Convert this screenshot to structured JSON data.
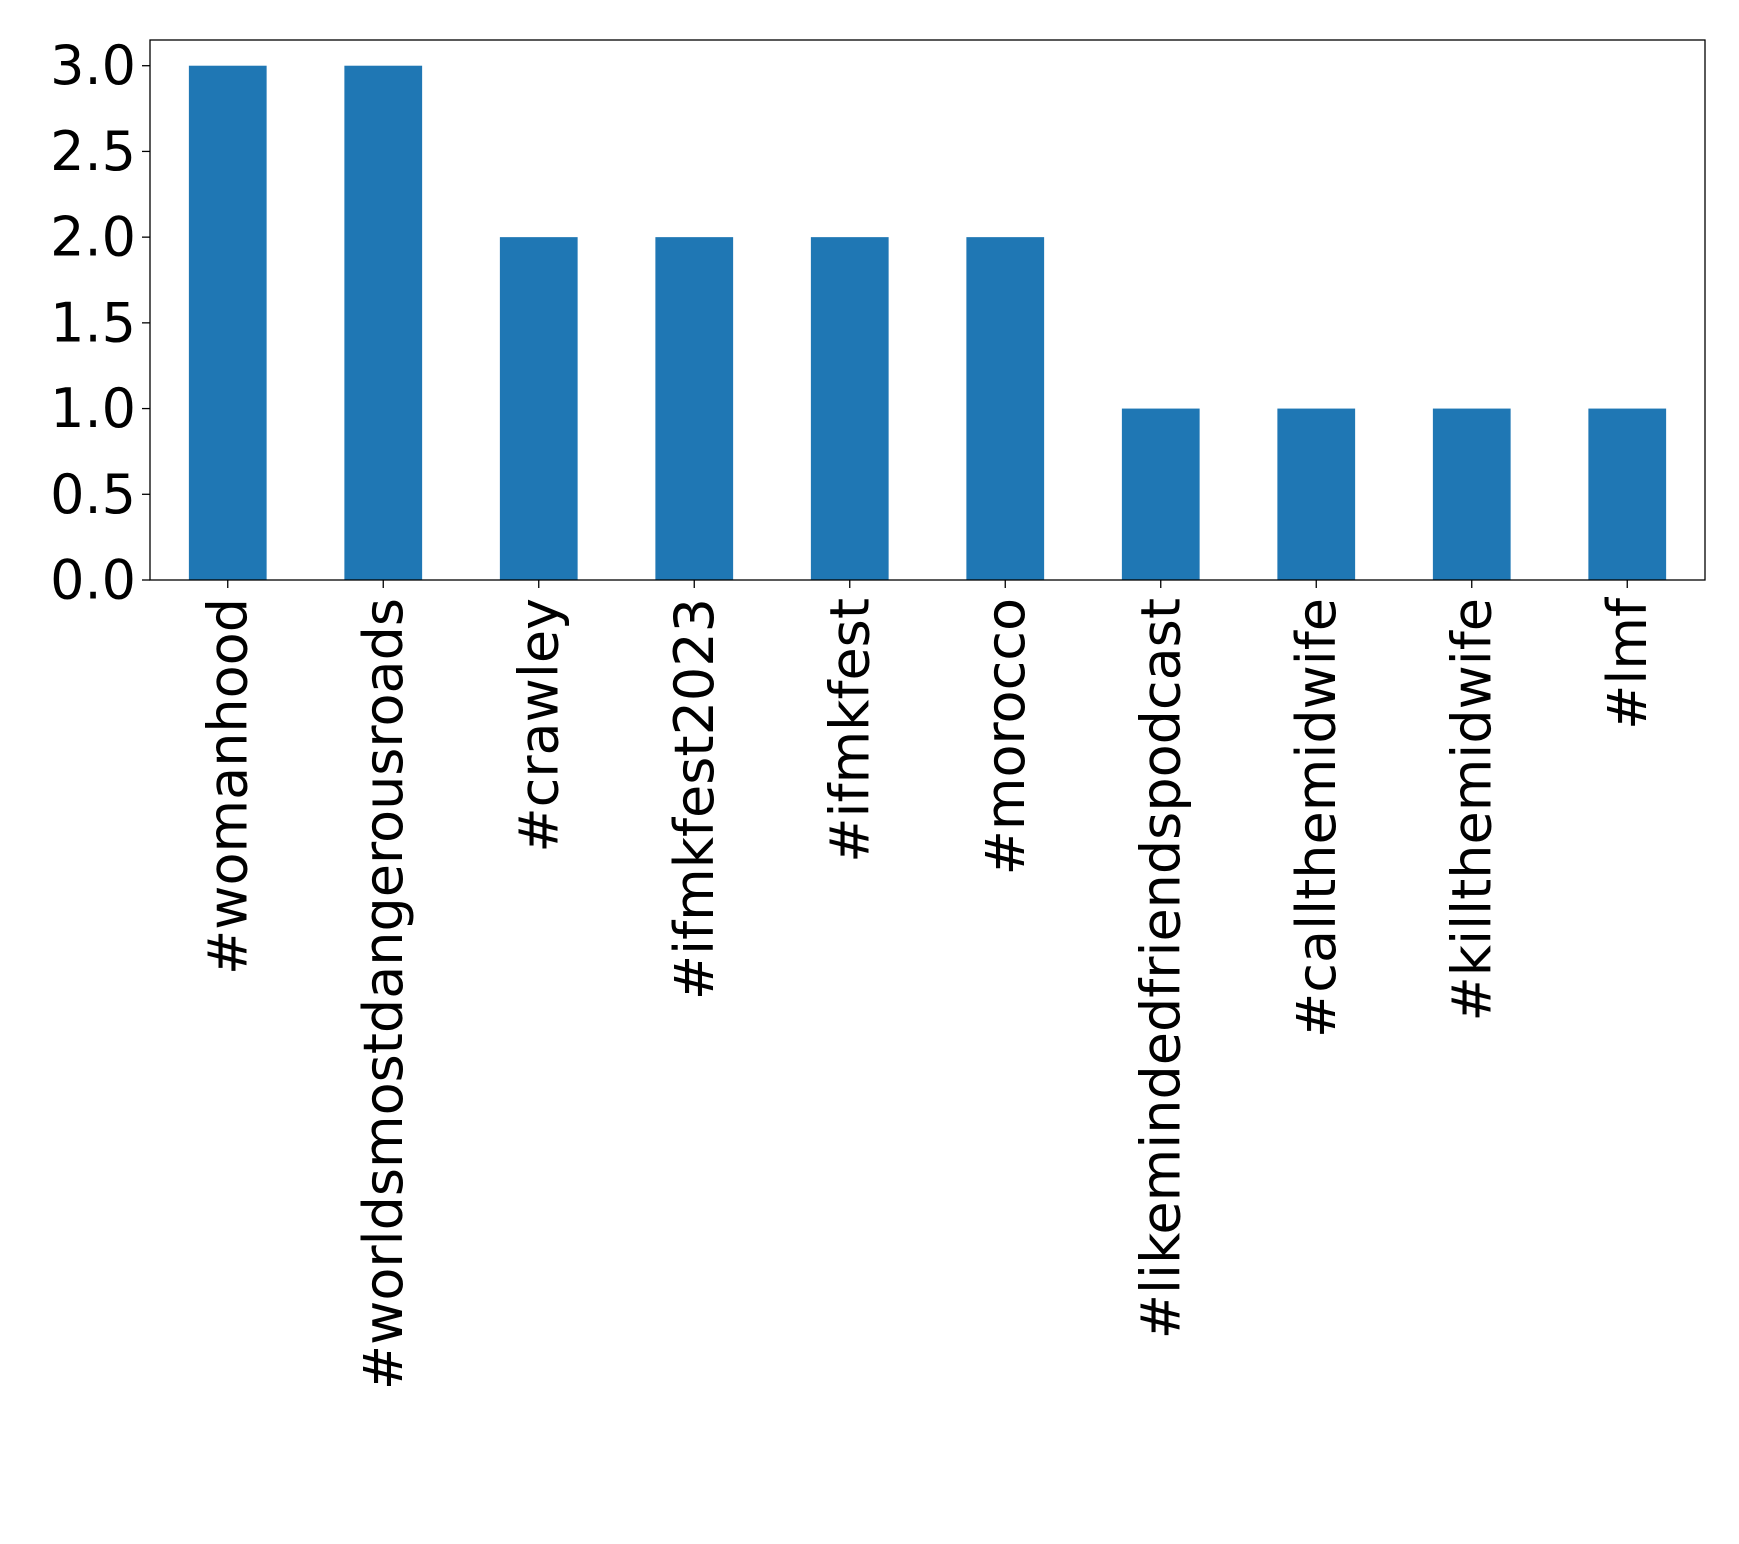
{
  "chart_data": {
    "type": "bar",
    "title": "",
    "xlabel": "",
    "ylabel": "",
    "categories": [
      "#womanhood",
      "#worldsmostdangerousroads",
      "#crawley",
      "#ifmkfest2023",
      "#ifmkfest",
      "#morocco",
      "#likemindedfriendspodcast",
      "#callthemidwife",
      "#killthemidwife",
      "#lmf"
    ],
    "values": [
      3,
      3,
      2,
      2,
      2,
      2,
      1,
      1,
      1,
      1
    ],
    "ylim": [
      0,
      3.15
    ],
    "yticks": [
      0.0,
      0.5,
      1.0,
      1.5,
      2.0,
      2.5,
      3.0
    ],
    "ytick_labels": [
      "0.0",
      "0.5",
      "1.0",
      "1.5",
      "2.0",
      "2.5",
      "3.0"
    ],
    "grid": false,
    "legend": "none",
    "bar_color": "#1f77b4"
  }
}
